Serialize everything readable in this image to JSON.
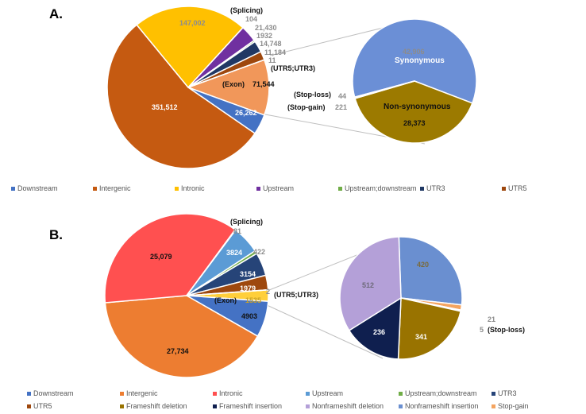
{
  "chart_data": [
    {
      "type": "pie",
      "panel": "A.",
      "main": {
        "slices": [
          {
            "name": "Exon",
            "value": 71544,
            "label": "71,544",
            "tag": "(Exon)",
            "color": "#f1975a"
          },
          {
            "name": "Downstream",
            "value": 26262,
            "label": "26,262",
            "color": "#4472c4"
          },
          {
            "name": "Intergenic",
            "value": 351512,
            "label": "351,512",
            "color": "#c55a11"
          },
          {
            "name": "Intronic",
            "value": 147002,
            "label": "147,002",
            "color": "#ffc000"
          },
          {
            "name": "Splicing",
            "value": 104,
            "label": "104",
            "tag": "(Splicing)",
            "color": "#a5a5a5"
          },
          {
            "name": "Upstream",
            "value": 21430,
            "label": "21,430",
            "color": "#7030a0"
          },
          {
            "name": "Upstream;downstream",
            "value": 1932,
            "label": "1932",
            "color": "#70ad47"
          },
          {
            "name": "UTR3",
            "value": 14748,
            "label": "14,748",
            "color": "#203864"
          },
          {
            "name": "UTR5",
            "value": 11184,
            "label": "11,184",
            "color": "#9e480e"
          },
          {
            "name": "UTR5;UTR3",
            "value": 11,
            "label": "11",
            "tag": "(UTR5;UTR3)",
            "color": "#636363"
          }
        ]
      },
      "secondary": {
        "slices": [
          {
            "name": "Synonymous",
            "value": 42906,
            "label": "42,906",
            "color": "#6b8fd6"
          },
          {
            "name": "Non-synonymous",
            "value": 28373,
            "label": "28,373",
            "color": "#9c7a00"
          },
          {
            "name": "Stop-gain",
            "value": 221,
            "label": "221",
            "tag": "(Stop-gain)",
            "color": "#f4a460"
          },
          {
            "name": "Stop-loss",
            "value": 44,
            "label": "44",
            "tag": "(Stop-loss)",
            "color": "#a5a5a5"
          }
        ]
      },
      "legend": [
        "Downstream",
        "Intergenic",
        "Intronic",
        "Upstream",
        "Upstream;downstream",
        "UTR3",
        "UTR5"
      ],
      "legend_colors": [
        "#4472c4",
        "#c55a11",
        "#ffc000",
        "#7030a0",
        "#70ad47",
        "#203864",
        "#9e480e"
      ]
    },
    {
      "type": "pie",
      "panel": "B.",
      "main": {
        "slices": [
          {
            "name": "Exon",
            "value": 1535,
            "label": "1535",
            "tag": "(Exon)",
            "color": "#ffcf3a"
          },
          {
            "name": "Downstream",
            "value": 4903,
            "label": "4903",
            "color": "#4472c4"
          },
          {
            "name": "Intergenic",
            "value": 27734,
            "label": "27,734",
            "color": "#ed7d31"
          },
          {
            "name": "Intronic",
            "value": 25079,
            "label": "25,079",
            "color": "#ff5050"
          },
          {
            "name": "Splicing",
            "value": 81,
            "label": "81",
            "tag": "(Splicing)",
            "color": "#a5a5a5"
          },
          {
            "name": "Upstream",
            "value": 3824,
            "label": "3824",
            "color": "#5b9bd5"
          },
          {
            "name": "Upstream;downstream",
            "value": 422,
            "label": "422",
            "color": "#70ad47"
          },
          {
            "name": "UTR3",
            "value": 3154,
            "label": "3154",
            "color": "#264478"
          },
          {
            "name": "UTR5",
            "value": 1979,
            "label": "1979",
            "color": "#9e480e"
          },
          {
            "name": "UTR5;UTR3",
            "value": 2,
            "label": "2",
            "tag": "(UTR5;UTR3)",
            "color": "#636363"
          }
        ]
      },
      "secondary": {
        "slices": [
          {
            "name": "Nonframeshift insertion",
            "value": 420,
            "label": "420",
            "color": "#6a8fd0"
          },
          {
            "name": "Stop-gain",
            "value": 21,
            "label": "21",
            "color": "#f4a460"
          },
          {
            "name": "Stop-loss",
            "value": 5,
            "label": "5",
            "tag": "(Stop-loss)",
            "color": "#a5a5a5"
          },
          {
            "name": "Frameshift deletion",
            "value": 341,
            "label": "341",
            "color": "#997300"
          },
          {
            "name": "Frameshift insertion",
            "value": 236,
            "label": "236",
            "color": "#0f1f4f"
          },
          {
            "name": "Nonframeshift deletion",
            "value": 512,
            "label": "512",
            "color": "#b4a0d8"
          }
        ]
      },
      "legend": [
        "Downstream",
        "Intergenic",
        "Intronic",
        "Upstream",
        "Upstream;downstream",
        "UTR3",
        "UTR5",
        "Frameshift deletion",
        "Frameshift insertion",
        "Nonframeshift deletion",
        "Nonframeshift insertion",
        "Stop-gain"
      ],
      "legend_colors": [
        "#4472c4",
        "#ed7d31",
        "#ff5050",
        "#5b9bd5",
        "#70ad47",
        "#264478",
        "#9e480e",
        "#997300",
        "#0f1f4f",
        "#b4a0d8",
        "#6a8fd0",
        "#f4a460"
      ]
    }
  ]
}
